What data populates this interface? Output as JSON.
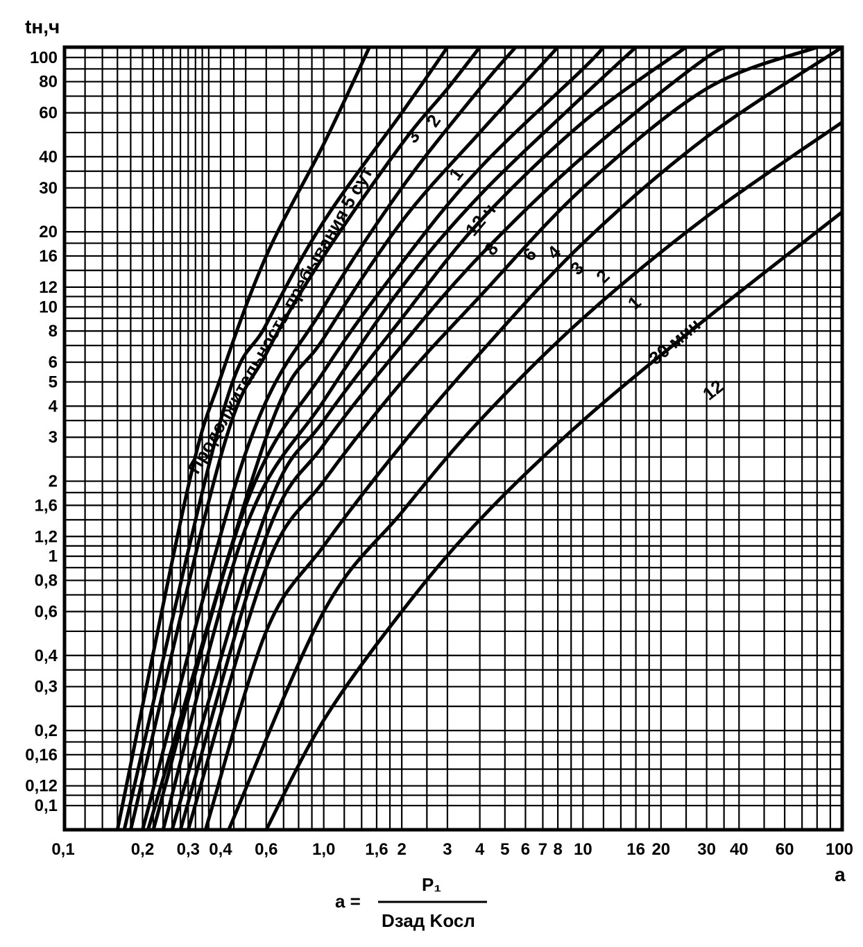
{
  "chart_data": {
    "type": "line",
    "xscale": "log",
    "yscale": "log",
    "xlim": [
      0.1,
      100
    ],
    "ylim": [
      0.08,
      110
    ],
    "grid": true,
    "ylabel": "tн,ч",
    "xlabel": "a",
    "formula": {
      "lhs": "a =",
      "numerator": "P₁",
      "denominator": "Dзад Kосл"
    },
    "x_ticks": [
      {
        "v": 0.1,
        "label": "0,1"
      },
      {
        "v": 0.2,
        "label": "0,2"
      },
      {
        "v": 0.3,
        "label": "0,3"
      },
      {
        "v": 0.4,
        "label": "0,4"
      },
      {
        "v": 0.6,
        "label": "0,6"
      },
      {
        "v": 1.0,
        "label": "1,0"
      },
      {
        "v": 1.6,
        "label": "1,6"
      },
      {
        "v": 2,
        "label": "2"
      },
      {
        "v": 3,
        "label": "3"
      },
      {
        "v": 4,
        "label": "4"
      },
      {
        "v": 5,
        "label": "5"
      },
      {
        "v": 6,
        "label": "6"
      },
      {
        "v": 7,
        "label": "7"
      },
      {
        "v": 8,
        "label": "8"
      },
      {
        "v": 10,
        "label": "10"
      },
      {
        "v": 16,
        "label": "16"
      },
      {
        "v": 20,
        "label": "20"
      },
      {
        "v": 30,
        "label": "30"
      },
      {
        "v": 40,
        "label": "40"
      },
      {
        "v": 60,
        "label": "60"
      },
      {
        "v": 100,
        "label": "100"
      }
    ],
    "y_ticks": [
      {
        "v": 0.1,
        "label": "0,1"
      },
      {
        "v": 0.12,
        "label": "0,12"
      },
      {
        "v": 0.16,
        "label": "0,16"
      },
      {
        "v": 0.2,
        "label": "0,2"
      },
      {
        "v": 0.3,
        "label": "0,3"
      },
      {
        "v": 0.4,
        "label": "0,4"
      },
      {
        "v": 0.6,
        "label": "0,6"
      },
      {
        "v": 0.8,
        "label": "0,8"
      },
      {
        "v": 1,
        "label": "1"
      },
      {
        "v": 1.2,
        "label": "1,2"
      },
      {
        "v": 1.6,
        "label": "1,6"
      },
      {
        "v": 2,
        "label": "2"
      },
      {
        "v": 3,
        "label": "3"
      },
      {
        "v": 4,
        "label": "4"
      },
      {
        "v": 5,
        "label": "5"
      },
      {
        "v": 6,
        "label": "6"
      },
      {
        "v": 8,
        "label": "8"
      },
      {
        "v": 10,
        "label": "10"
      },
      {
        "v": 12,
        "label": "12"
      },
      {
        "v": 16,
        "label": "16"
      },
      {
        "v": 20,
        "label": "20"
      },
      {
        "v": 30,
        "label": "30"
      },
      {
        "v": 40,
        "label": "40"
      },
      {
        "v": 60,
        "label": "60"
      },
      {
        "v": 80,
        "label": "80"
      },
      {
        "v": 100,
        "label": "100"
      }
    ],
    "grid_x": [
      0.1,
      0.12,
      0.14,
      0.16,
      0.18,
      0.2,
      0.22,
      0.24,
      0.26,
      0.28,
      0.3,
      0.32,
      0.34,
      0.36,
      0.4,
      0.45,
      0.5,
      0.6,
      0.7,
      0.8,
      0.9,
      1.0,
      1.2,
      1.4,
      1.6,
      1.8,
      2,
      2.5,
      3,
      4,
      5,
      6,
      7,
      8,
      9,
      10,
      12,
      14,
      16,
      18,
      20,
      25,
      30,
      35,
      40,
      50,
      60,
      70,
      80,
      90,
      100
    ],
    "grid_y": [
      0.1,
      0.11,
      0.12,
      0.14,
      0.16,
      0.18,
      0.2,
      0.25,
      0.3,
      0.35,
      0.4,
      0.5,
      0.6,
      0.7,
      0.8,
      0.9,
      1,
      1.1,
      1.2,
      1.4,
      1.6,
      1.8,
      2,
      2.5,
      3,
      3.5,
      4,
      5,
      6,
      7,
      8,
      9,
      10,
      11,
      12,
      14,
      16,
      18,
      20,
      25,
      30,
      35,
      40,
      50,
      60,
      70,
      80,
      90,
      100
    ],
    "series": [
      {
        "label": "Продолжительность пребывания 5 сут",
        "points": [
          [
            0.16,
            0.08
          ],
          [
            0.3,
            1.9
          ],
          [
            0.4,
            5.2
          ],
          [
            0.6,
            16
          ],
          [
            1.0,
            45
          ],
          [
            1.5,
            110
          ]
        ]
      },
      {
        "label": "3",
        "points": [
          [
            0.17,
            0.08
          ],
          [
            0.4,
            3.5
          ],
          [
            0.6,
            8.5
          ],
          [
            1.0,
            22
          ],
          [
            2.0,
            60
          ],
          [
            3.0,
            110
          ]
        ]
      },
      {
        "label": "2",
        "points": [
          [
            0.18,
            0.08
          ],
          [
            0.4,
            2.5
          ],
          [
            0.6,
            6.5
          ],
          [
            1.0,
            16
          ],
          [
            2.0,
            45
          ],
          [
            3.0,
            75
          ],
          [
            4.0,
            110
          ]
        ]
      },
      {
        "label": "1",
        "points": [
          [
            0.2,
            0.08
          ],
          [
            0.5,
            2.6
          ],
          [
            1.0,
            10
          ],
          [
            2.0,
            30
          ],
          [
            4.0,
            75
          ],
          [
            5.5,
            110
          ]
        ]
      },
      {
        "label": "12 ч",
        "points": [
          [
            0.21,
            0.08
          ],
          [
            0.6,
            3
          ],
          [
            1.0,
            7.5
          ],
          [
            2.0,
            22
          ],
          [
            4.0,
            50
          ],
          [
            8.0,
            110
          ]
        ]
      },
      {
        "label": "8",
        "points": [
          [
            0.22,
            0.08
          ],
          [
            0.5,
            1.6
          ],
          [
            1.0,
            5.5
          ],
          [
            2.0,
            15
          ],
          [
            4.0,
            36
          ],
          [
            10,
            90
          ],
          [
            12,
            110
          ]
        ]
      },
      {
        "label": "6",
        "points": [
          [
            0.24,
            0.08
          ],
          [
            0.5,
            1.3
          ],
          [
            1.0,
            4.2
          ],
          [
            2.0,
            12
          ],
          [
            4.0,
            28
          ],
          [
            10,
            70
          ],
          [
            16,
            110
          ]
        ]
      },
      {
        "label": "4",
        "points": [
          [
            0.26,
            0.08
          ],
          [
            0.6,
            1.5
          ],
          [
            1.0,
            3.5
          ],
          [
            2.0,
            9
          ],
          [
            4.0,
            22
          ],
          [
            10,
            55
          ],
          [
            25,
            110
          ]
        ]
      },
      {
        "label": "3",
        "points": [
          [
            0.28,
            0.08
          ],
          [
            0.6,
            1.2
          ],
          [
            1.0,
            2.8
          ],
          [
            2.0,
            7
          ],
          [
            4.0,
            16
          ],
          [
            10,
            40
          ],
          [
            30,
            100
          ],
          [
            40,
            110
          ]
        ]
      },
      {
        "label": "2",
        "points": [
          [
            0.3,
            0.08
          ],
          [
            0.6,
            0.9
          ],
          [
            1.0,
            2.0
          ],
          [
            2.0,
            5
          ],
          [
            4.0,
            11
          ],
          [
            10,
            30
          ],
          [
            30,
            75
          ],
          [
            80,
            110
          ]
        ]
      },
      {
        "label": "1",
        "points": [
          [
            0.35,
            0.08
          ],
          [
            0.6,
            0.5
          ],
          [
            1.0,
            1.1
          ],
          [
            2.0,
            2.8
          ],
          [
            4.0,
            6.5
          ],
          [
            10,
            18
          ],
          [
            30,
            48
          ],
          [
            100,
            110
          ]
        ]
      },
      {
        "label": "30 мин",
        "points": [
          [
            0.43,
            0.08
          ],
          [
            1.0,
            0.6
          ],
          [
            2.0,
            1.5
          ],
          [
            4.0,
            3.5
          ],
          [
            10,
            9
          ],
          [
            30,
            23
          ],
          [
            100,
            55
          ]
        ]
      },
      {
        "label": "12",
        "points": [
          [
            0.6,
            0.08
          ],
          [
            1.0,
            0.22
          ],
          [
            2.0,
            0.6
          ],
          [
            4.0,
            1.4
          ],
          [
            10,
            3.5
          ],
          [
            30,
            9
          ],
          [
            100,
            24
          ]
        ]
      }
    ],
    "label_text": {
      "main": "Продолжительность пребывания 5 сут",
      "l3": "3",
      "l2": "2",
      "l1": "1",
      "l12h": "12 ч",
      "l8": "8",
      "l6": "6",
      "l4": "4",
      "l3b": "3",
      "l2b": "2",
      "l1b": "1",
      "l30m": "30 мин",
      "l12m": "12"
    }
  }
}
